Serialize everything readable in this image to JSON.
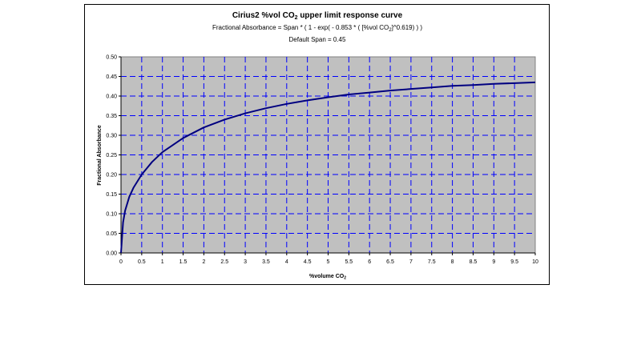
{
  "chart_data": {
    "type": "line",
    "title": "Cirius2 %vol CO2 upper limit response curve",
    "title_parts": {
      "before_sub": "Cirius2 %vol CO",
      "sub": "2",
      "after_sub": " upper limit response curve"
    },
    "subtitle": "Fractional Absorbance = Span * ( 1 - exp( - 0.853 * ( [%vol CO2]^0.619) ) )",
    "subtitle_parts": {
      "before_sub": "Fractional Absorbance = Span * ( 1 - exp( - 0.853 * ( [%vol CO",
      "sub": "2",
      "after_sub": "]^0.619) ) )"
    },
    "note": "Default Span = 0.45",
    "xlabel": "%volume CO2",
    "xlabel_parts": {
      "before_sub": "%volume CO",
      "sub": "2"
    },
    "ylabel": "Fractional Absorbance",
    "xlim": [
      0,
      10
    ],
    "ylim": [
      0,
      0.5
    ],
    "x_ticks": [
      "0",
      "0.5",
      "1",
      "1.5",
      "2",
      "2.5",
      "3",
      "3.5",
      "4",
      "4.5",
      "5",
      "5.5",
      "6",
      "6.5",
      "7",
      "7.5",
      "8",
      "8.5",
      "9",
      "9.5",
      "10"
    ],
    "y_ticks": [
      "0.00",
      "0.05",
      "0.10",
      "0.15",
      "0.20",
      "0.25",
      "0.30",
      "0.35",
      "0.40",
      "0.45",
      "0.50"
    ],
    "grid": true,
    "series": [
      {
        "x": [
          0,
          0.05,
          0.1,
          0.2,
          0.3,
          0.5,
          0.75,
          1,
          1.5,
          2,
          2.5,
          3,
          3.5,
          4,
          4.5,
          5,
          5.5,
          6,
          6.5,
          7,
          7.5,
          8,
          8.5,
          9,
          9.5,
          10
        ],
        "values": [
          0,
          0.078,
          0.108,
          0.143,
          0.166,
          0.2,
          0.232,
          0.257,
          0.293,
          0.32,
          0.34,
          0.356,
          0.369,
          0.38,
          0.389,
          0.397,
          0.404,
          0.409,
          0.414,
          0.418,
          0.422,
          0.426,
          0.428,
          0.431,
          0.433,
          0.435
        ]
      }
    ]
  },
  "colors": {
    "plot_bg": "#c0c0c0",
    "grid": "#0000ff",
    "line": "#000080"
  }
}
